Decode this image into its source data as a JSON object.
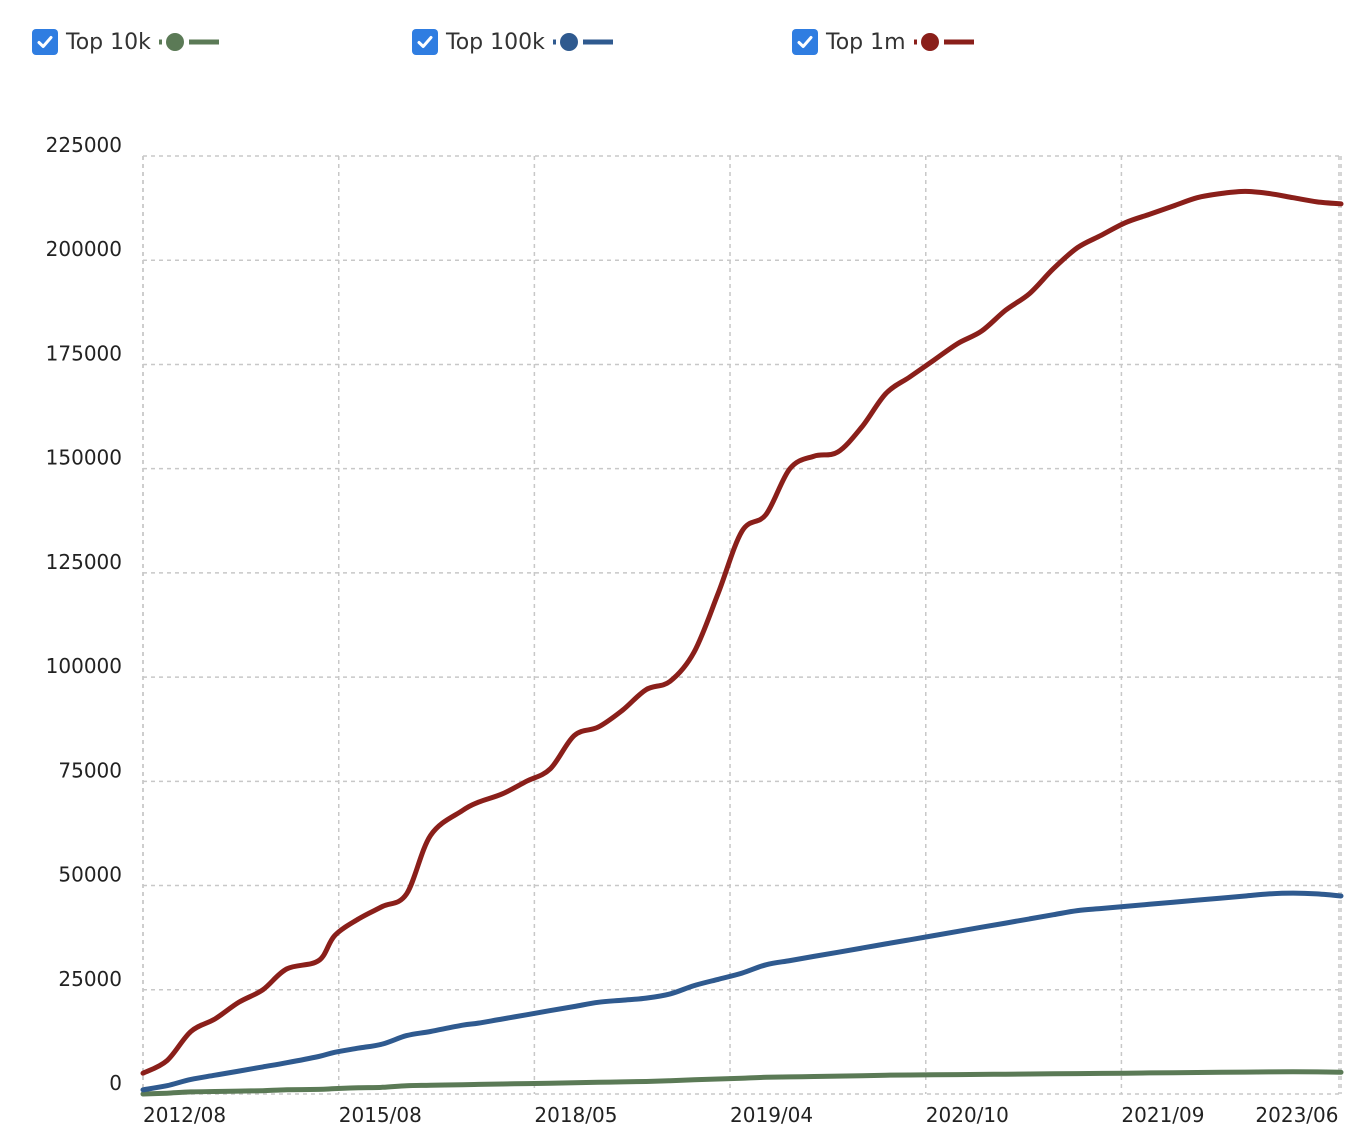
{
  "legend": {
    "items": [
      {
        "label": "Top 10k",
        "color": "#5b7a56",
        "checked": true
      },
      {
        "label": "Top 100k",
        "color": "#2f5a8f",
        "checked": true
      },
      {
        "label": "Top 1m",
        "color": "#8a1f1a",
        "checked": true
      }
    ]
  },
  "chart_data": {
    "type": "line",
    "title": "",
    "xlabel": "",
    "ylabel": "",
    "ylim": [
      0,
      225000
    ],
    "xlim": [
      0,
      1
    ],
    "grid": true,
    "legend_position": "top",
    "y_ticks": [
      "0",
      "25000",
      "50000",
      "75000",
      "100000",
      "125000",
      "150000",
      "175000",
      "200000",
      "225000"
    ],
    "x_ticks": [
      {
        "label": "2012/08",
        "pos": 0.0
      },
      {
        "label": "2015/08",
        "pos": 0.1634
      },
      {
        "label": "2018/05",
        "pos": 0.3267
      },
      {
        "label": "2019/04",
        "pos": 0.49
      },
      {
        "label": "2020/10",
        "pos": 0.6534
      },
      {
        "label": "2021/09",
        "pos": 0.8167
      },
      {
        "label": "2023/06",
        "pos": 0.9983
      }
    ],
    "x": [
      0.0,
      0.02,
      0.04,
      0.06,
      0.08,
      0.1,
      0.12,
      0.1467,
      0.16,
      0.18,
      0.2,
      0.22,
      0.24,
      0.2667,
      0.28,
      0.3,
      0.32,
      0.34,
      0.36,
      0.38,
      0.4,
      0.42,
      0.44,
      0.46,
      0.48,
      0.5,
      0.52,
      0.54,
      0.56,
      0.58,
      0.6,
      0.62,
      0.64,
      0.66,
      0.68,
      0.7,
      0.72,
      0.74,
      0.76,
      0.78,
      0.8,
      0.82,
      0.84,
      0.86,
      0.88,
      0.9,
      0.92,
      0.94,
      0.96,
      0.98,
      1.0
    ],
    "series": [
      {
        "name": "Top 10k",
        "color": "#5b7a56",
        "values": [
          0,
          200,
          500,
          600,
          700,
          800,
          1000,
          1100,
          1300,
          1500,
          1600,
          2000,
          2100,
          2200,
          2300,
          2400,
          2500,
          2600,
          2700,
          2800,
          2900,
          3000,
          3200,
          3400,
          3600,
          3800,
          4000,
          4100,
          4200,
          4300,
          4400,
          4500,
          4550,
          4600,
          4650,
          4700,
          4750,
          4800,
          4850,
          4900,
          4950,
          5000,
          5050,
          5100,
          5150,
          5200,
          5250,
          5300,
          5350,
          5300,
          5200
        ]
      },
      {
        "name": "Top 100k",
        "color": "#2f5a8f",
        "values": [
          1000,
          2000,
          3500,
          4500,
          5500,
          6500,
          7500,
          9000,
          10000,
          11000,
          12000,
          14000,
          15000,
          16500,
          17000,
          18000,
          19000,
          20000,
          21000,
          22000,
          22500,
          23000,
          24000,
          26000,
          27500,
          29000,
          31000,
          32000,
          33000,
          34000,
          35000,
          36000,
          37000,
          38000,
          39000,
          40000,
          41000,
          42000,
          43000,
          44000,
          44500,
          45000,
          45500,
          46000,
          46500,
          47000,
          47500,
          48000,
          48200,
          48000,
          47500
        ]
      },
      {
        "name": "Top 1m",
        "color": "#8a1f1a",
        "values": [
          5000,
          8000,
          15000,
          18000,
          22000,
          25000,
          30000,
          32000,
          38000,
          42000,
          45000,
          48000,
          62000,
          68000,
          70000,
          72000,
          75000,
          78000,
          86000,
          88000,
          92000,
          97000,
          99000,
          106000,
          120000,
          135000,
          139000,
          150000,
          153000,
          154000,
          160000,
          168000,
          172000,
          176000,
          180000,
          183000,
          188000,
          192000,
          198000,
          203000,
          206000,
          209000,
          211000,
          213000,
          215000,
          216000,
          216500,
          216000,
          215000,
          214000,
          213500
        ]
      }
    ]
  }
}
